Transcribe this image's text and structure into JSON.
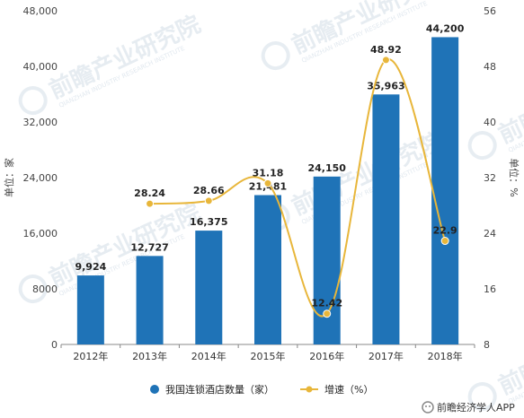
{
  "chart_data": {
    "type": "bar+line",
    "categories": [
      "2012年",
      "2013年",
      "2014年",
      "2015年",
      "2016年",
      "2017年",
      "2018年"
    ],
    "series": [
      {
        "name": "我国连锁酒店数量（家）",
        "type": "bar",
        "axis": "left",
        "values": [
          9924,
          12727,
          16375,
          21481,
          24150,
          35963,
          44200
        ],
        "labels": [
          "9,924",
          "12,727",
          "16,375",
          "21,481",
          "24,150",
          "35,963",
          "44,200"
        ],
        "color": "#1f73b7"
      },
      {
        "name": "增速（%）",
        "type": "line",
        "axis": "right",
        "values": [
          null,
          28.24,
          28.66,
          31.18,
          12.42,
          48.92,
          22.9
        ],
        "labels": [
          "",
          "28.24",
          "28.66",
          "31.18",
          "12.42",
          "48.92",
          "22.9"
        ],
        "color": "#e8b63a"
      }
    ],
    "y_left": {
      "label": "单位：家",
      "range": [
        0,
        48000
      ],
      "ticks": [
        0,
        8000,
        16000,
        24000,
        32000,
        40000,
        48000
      ],
      "tick_labels": [
        "0",
        "8000",
        "16,000",
        "24,000",
        "32,000",
        "40,000",
        "48,000"
      ]
    },
    "y_right": {
      "label": "单位：%",
      "range": [
        8,
        56
      ],
      "ticks": [
        8,
        16,
        24,
        32,
        40,
        48,
        56
      ],
      "tick_labels": [
        "8",
        "16",
        "24",
        "32",
        "40",
        "48",
        "56"
      ]
    },
    "grid": false,
    "legend": "bottom-center"
  },
  "watermark": {
    "text": "前瞻产业研究院",
    "sub": "QIANZHAN INDUSTRY RESEARCH INSTITUTE"
  },
  "credit": {
    "icon": "wechat-icon",
    "text": "前瞻经济学人APP"
  }
}
